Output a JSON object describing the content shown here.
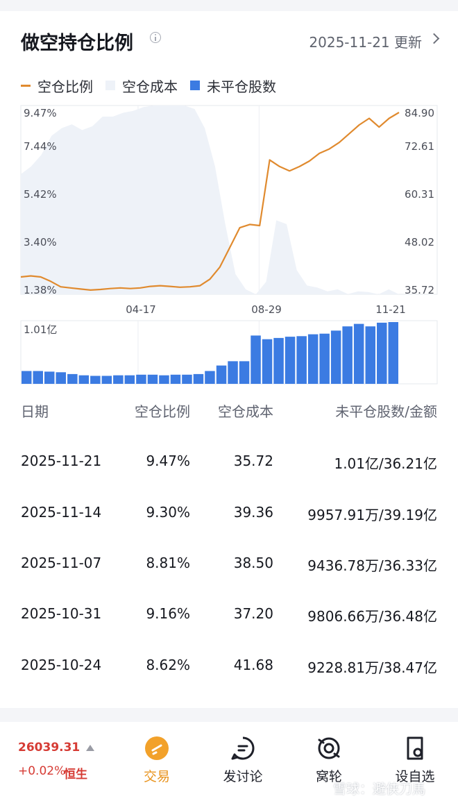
{
  "header": {
    "title": "做空持仓比例",
    "updated": "2025-11-21 更新"
  },
  "legend": [
    {
      "label": "空仓比例",
      "color": "#e08a2e"
    },
    {
      "label": "空仓成本",
      "color": "#eef2f8"
    },
    {
      "label": "未平仓股数",
      "color": "#3b7be2"
    }
  ],
  "chart_data": {
    "type": "line",
    "x_ticks": [
      "04-17",
      "08-29",
      "11-21"
    ],
    "left_axis": [
      "9.47%",
      "7.44%",
      "5.42%",
      "3.40%",
      "1.38%"
    ],
    "right_axis": [
      "84.90",
      "72.61",
      "60.31",
      "48.02",
      "35.72"
    ],
    "ratio_range": [
      1.38,
      9.47
    ],
    "cost_range": [
      35.72,
      84.9
    ],
    "short_ratio": [
      1.95,
      2.0,
      1.95,
      1.75,
      1.5,
      1.45,
      1.4,
      1.35,
      1.38,
      1.42,
      1.45,
      1.42,
      1.45,
      1.52,
      1.55,
      1.52,
      1.48,
      1.5,
      1.55,
      1.85,
      2.4,
      3.3,
      4.2,
      4.35,
      4.3,
      7.3,
      7.0,
      6.8,
      7.0,
      7.25,
      7.6,
      7.8,
      8.1,
      8.5,
      8.9,
      9.2,
      8.8,
      9.2,
      9.47
    ],
    "short_cost": [
      67.0,
      69.0,
      72.0,
      77.0,
      79.0,
      80.0,
      78.5,
      79.5,
      82.0,
      82.0,
      83.0,
      83.5,
      84.5,
      85.5,
      85.8,
      86.5,
      88.5,
      84.0,
      79.0,
      69.0,
      54.0,
      41.0,
      37.0,
      35.0,
      39.0,
      55.0,
      54.0,
      42.0,
      38.0,
      37.5,
      36.5,
      37.0,
      35.8,
      36.5,
      36.3,
      35.5,
      37.0,
      35.72
    ],
    "short_shares_label": "1.01亿",
    "short_shares": [
      0.21,
      0.21,
      0.2,
      0.19,
      0.16,
      0.14,
      0.13,
      0.13,
      0.14,
      0.14,
      0.15,
      0.15,
      0.14,
      0.15,
      0.15,
      0.16,
      0.21,
      0.3,
      0.37,
      0.37,
      0.79,
      0.73,
      0.75,
      0.77,
      0.78,
      0.81,
      0.82,
      0.87,
      0.94,
      0.98,
      0.94,
      1.0,
      1.01
    ],
    "shares_max": 1.01
  },
  "table": {
    "headers": [
      "日期",
      "空仓比例",
      "空仓成本",
      "未平仓股数/金额"
    ],
    "rows": [
      [
        "2025-11-21",
        "9.47%",
        "35.72",
        "1.01亿/36.21亿"
      ],
      [
        "2025-11-14",
        "9.30%",
        "39.36",
        "9957.91万/39.19亿"
      ],
      [
        "2025-11-07",
        "8.81%",
        "38.50",
        "9436.78万/36.33亿"
      ],
      [
        "2025-10-31",
        "9.16%",
        "37.20",
        "9806.66万/36.48亿"
      ],
      [
        "2025-10-24",
        "8.62%",
        "41.68",
        "9228.81万/38.47亿"
      ]
    ]
  },
  "bottom": {
    "index_value": "26039.31",
    "index_change": "+0.02%",
    "index_name": "恒生",
    "nav": [
      {
        "label": "交易",
        "icon": "trade-icon",
        "color": "#f2a12a"
      },
      {
        "label": "发讨论",
        "icon": "comment-icon"
      },
      {
        "label": "窝轮",
        "icon": "warrant-icon"
      },
      {
        "label": "设自选",
        "icon": "add-watchlist-icon"
      }
    ],
    "watermark": "雪球：避侠刀馬"
  }
}
